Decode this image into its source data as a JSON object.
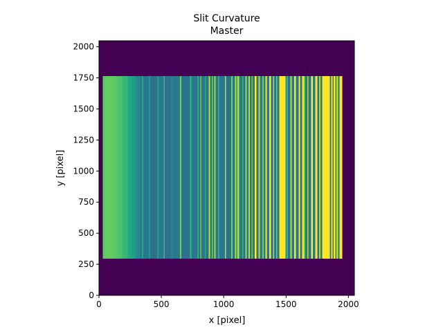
{
  "figure": {
    "title_line1": "Slit Curvature",
    "title_line2": "Master"
  },
  "chart_data": {
    "type": "heatmap",
    "title": "Slit Curvature\nMaster",
    "xlabel": "x [pixel]",
    "ylabel": "y [pixel]",
    "xlim": [
      0,
      2048
    ],
    "ylim": [
      0,
      2048
    ],
    "x_ticks": [
      0,
      500,
      1000,
      1500,
      2000
    ],
    "y_ticks": [
      0,
      250,
      500,
      750,
      1000,
      1250,
      1500,
      1750,
      2000
    ],
    "x_tick_labels": [
      "0",
      "500",
      "1000",
      "1500",
      "2000"
    ],
    "y_tick_labels": [
      "0",
      "250",
      "500",
      "750",
      "1000",
      "1250",
      "1500",
      "1750",
      "2000"
    ],
    "grid": false,
    "colormap": "viridis",
    "background_value_color": "#440154",
    "illuminated_region": {
      "x_range": [
        30,
        1950
      ],
      "y_range": [
        295,
        1765
      ]
    },
    "bands": [
      {
        "x0": 30,
        "x1": 50,
        "color": "#5ec962"
      },
      {
        "x0": 50,
        "x1": 110,
        "color": "#64cb5f"
      },
      {
        "x0": 110,
        "x1": 150,
        "color": "#5ac864"
      },
      {
        "x0": 150,
        "x1": 180,
        "color": "#4ec36b"
      },
      {
        "x0": 180,
        "x1": 200,
        "color": "#3fbc73"
      },
      {
        "x0": 200,
        "x1": 230,
        "color": "#35b779"
      },
      {
        "x0": 230,
        "x1": 260,
        "color": "#22a884"
      },
      {
        "x0": 260,
        "x1": 290,
        "color": "#1f9e89"
      },
      {
        "x0": 290,
        "x1": 330,
        "color": "#238a8d"
      },
      {
        "x0": 330,
        "x1": 345,
        "color": "#2a788e"
      },
      {
        "x0": 345,
        "x1": 355,
        "color": "#22a884"
      },
      {
        "x0": 355,
        "x1": 400,
        "color": "#2a788e"
      },
      {
        "x0": 400,
        "x1": 410,
        "color": "#1f9e89"
      },
      {
        "x0": 410,
        "x1": 470,
        "color": "#2c728e"
      },
      {
        "x0": 470,
        "x1": 478,
        "color": "#22a884"
      },
      {
        "x0": 478,
        "x1": 520,
        "color": "#2a788e"
      },
      {
        "x0": 520,
        "x1": 528,
        "color": "#35b779"
      },
      {
        "x0": 528,
        "x1": 580,
        "color": "#2c728e"
      },
      {
        "x0": 580,
        "x1": 586,
        "color": "#1f9e89"
      },
      {
        "x0": 586,
        "x1": 650,
        "color": "#2a788e"
      },
      {
        "x0": 650,
        "x1": 660,
        "color": "#6ece58"
      },
      {
        "x0": 660,
        "x1": 730,
        "color": "#2c728e"
      },
      {
        "x0": 730,
        "x1": 740,
        "color": "#35b779"
      },
      {
        "x0": 740,
        "x1": 790,
        "color": "#2a788e"
      },
      {
        "x0": 790,
        "x1": 798,
        "color": "#35b779"
      },
      {
        "x0": 798,
        "x1": 812,
        "color": "#2c728e"
      },
      {
        "x0": 812,
        "x1": 820,
        "color": "#b5de2b"
      },
      {
        "x0": 820,
        "x1": 850,
        "color": "#2a788e"
      },
      {
        "x0": 850,
        "x1": 858,
        "color": "#22a884"
      },
      {
        "x0": 858,
        "x1": 880,
        "color": "#2c728e"
      },
      {
        "x0": 880,
        "x1": 890,
        "color": "#b5de2b"
      },
      {
        "x0": 890,
        "x1": 905,
        "color": "#2a788e"
      },
      {
        "x0": 905,
        "x1": 912,
        "color": "#6ece58"
      },
      {
        "x0": 912,
        "x1": 925,
        "color": "#2a788e"
      },
      {
        "x0": 925,
        "x1": 935,
        "color": "#a0da39"
      },
      {
        "x0": 935,
        "x1": 955,
        "color": "#2c728e"
      },
      {
        "x0": 955,
        "x1": 962,
        "color": "#35b779"
      },
      {
        "x0": 962,
        "x1": 1010,
        "color": "#2a788e"
      },
      {
        "x0": 1010,
        "x1": 1018,
        "color": "#b5de2b"
      },
      {
        "x0": 1018,
        "x1": 1060,
        "color": "#2c728e"
      },
      {
        "x0": 1060,
        "x1": 1070,
        "color": "#6ece58"
      },
      {
        "x0": 1070,
        "x1": 1090,
        "color": "#2a788e"
      },
      {
        "x0": 1090,
        "x1": 1098,
        "color": "#cae11f"
      },
      {
        "x0": 1098,
        "x1": 1110,
        "color": "#22a884"
      },
      {
        "x0": 1110,
        "x1": 1125,
        "color": "#b5de2b"
      },
      {
        "x0": 1125,
        "x1": 1150,
        "color": "#2a788e"
      },
      {
        "x0": 1150,
        "x1": 1158,
        "color": "#35b779"
      },
      {
        "x0": 1158,
        "x1": 1175,
        "color": "#2c728e"
      },
      {
        "x0": 1175,
        "x1": 1185,
        "color": "#a0da39"
      },
      {
        "x0": 1185,
        "x1": 1200,
        "color": "#2a788e"
      },
      {
        "x0": 1200,
        "x1": 1210,
        "color": "#b5de2b"
      },
      {
        "x0": 1210,
        "x1": 1225,
        "color": "#2c728e"
      },
      {
        "x0": 1225,
        "x1": 1232,
        "color": "#6ece58"
      },
      {
        "x0": 1232,
        "x1": 1250,
        "color": "#2a788e"
      },
      {
        "x0": 1250,
        "x1": 1262,
        "color": "#fde725"
      },
      {
        "x0": 1262,
        "x1": 1280,
        "color": "#2c728e"
      },
      {
        "x0": 1280,
        "x1": 1290,
        "color": "#b5de2b"
      },
      {
        "x0": 1290,
        "x1": 1310,
        "color": "#2a788e"
      },
      {
        "x0": 1310,
        "x1": 1320,
        "color": "#6ece58"
      },
      {
        "x0": 1320,
        "x1": 1335,
        "color": "#2c728e"
      },
      {
        "x0": 1335,
        "x1": 1345,
        "color": "#fde725"
      },
      {
        "x0": 1345,
        "x1": 1365,
        "color": "#2a788e"
      },
      {
        "x0": 1365,
        "x1": 1380,
        "color": "#fde725"
      },
      {
        "x0": 1380,
        "x1": 1395,
        "color": "#2c728e"
      },
      {
        "x0": 1395,
        "x1": 1405,
        "color": "#b5de2b"
      },
      {
        "x0": 1405,
        "x1": 1420,
        "color": "#2a788e"
      },
      {
        "x0": 1420,
        "x1": 1430,
        "color": "#6ece58"
      },
      {
        "x0": 1430,
        "x1": 1445,
        "color": "#2c728e"
      },
      {
        "x0": 1445,
        "x1": 1495,
        "color": "#fde725"
      },
      {
        "x0": 1495,
        "x1": 1505,
        "color": "#2a788e"
      },
      {
        "x0": 1505,
        "x1": 1515,
        "color": "#35b779"
      },
      {
        "x0": 1515,
        "x1": 1535,
        "color": "#2c728e"
      },
      {
        "x0": 1535,
        "x1": 1545,
        "color": "#b5de2b"
      },
      {
        "x0": 1545,
        "x1": 1565,
        "color": "#2a788e"
      },
      {
        "x0": 1565,
        "x1": 1580,
        "color": "#fde725"
      },
      {
        "x0": 1580,
        "x1": 1600,
        "color": "#2c728e"
      },
      {
        "x0": 1600,
        "x1": 1612,
        "color": "#fde725"
      },
      {
        "x0": 1612,
        "x1": 1630,
        "color": "#2a788e"
      },
      {
        "x0": 1630,
        "x1": 1645,
        "color": "#fde725"
      },
      {
        "x0": 1645,
        "x1": 1655,
        "color": "#35b779"
      },
      {
        "x0": 1655,
        "x1": 1670,
        "color": "#2a788e"
      },
      {
        "x0": 1670,
        "x1": 1680,
        "color": "#b5de2b"
      },
      {
        "x0": 1680,
        "x1": 1700,
        "color": "#2c728e"
      },
      {
        "x0": 1700,
        "x1": 1715,
        "color": "#fde725"
      },
      {
        "x0": 1715,
        "x1": 1735,
        "color": "#2a788e"
      },
      {
        "x0": 1735,
        "x1": 1750,
        "color": "#fde725"
      },
      {
        "x0": 1750,
        "x1": 1765,
        "color": "#2c728e"
      },
      {
        "x0": 1765,
        "x1": 1775,
        "color": "#b5de2b"
      },
      {
        "x0": 1775,
        "x1": 1790,
        "color": "#2a788e"
      },
      {
        "x0": 1790,
        "x1": 1850,
        "color": "#fde725"
      },
      {
        "x0": 1850,
        "x1": 1862,
        "color": "#2a788e"
      },
      {
        "x0": 1862,
        "x1": 1872,
        "color": "#fde725"
      },
      {
        "x0": 1872,
        "x1": 1882,
        "color": "#2c728e"
      },
      {
        "x0": 1882,
        "x1": 1895,
        "color": "#fde725"
      },
      {
        "x0": 1895,
        "x1": 1905,
        "color": "#2a788e"
      },
      {
        "x0": 1905,
        "x1": 1918,
        "color": "#b5de2b"
      },
      {
        "x0": 1918,
        "x1": 1928,
        "color": "#2c728e"
      },
      {
        "x0": 1928,
        "x1": 1950,
        "color": "#fde725"
      }
    ]
  }
}
